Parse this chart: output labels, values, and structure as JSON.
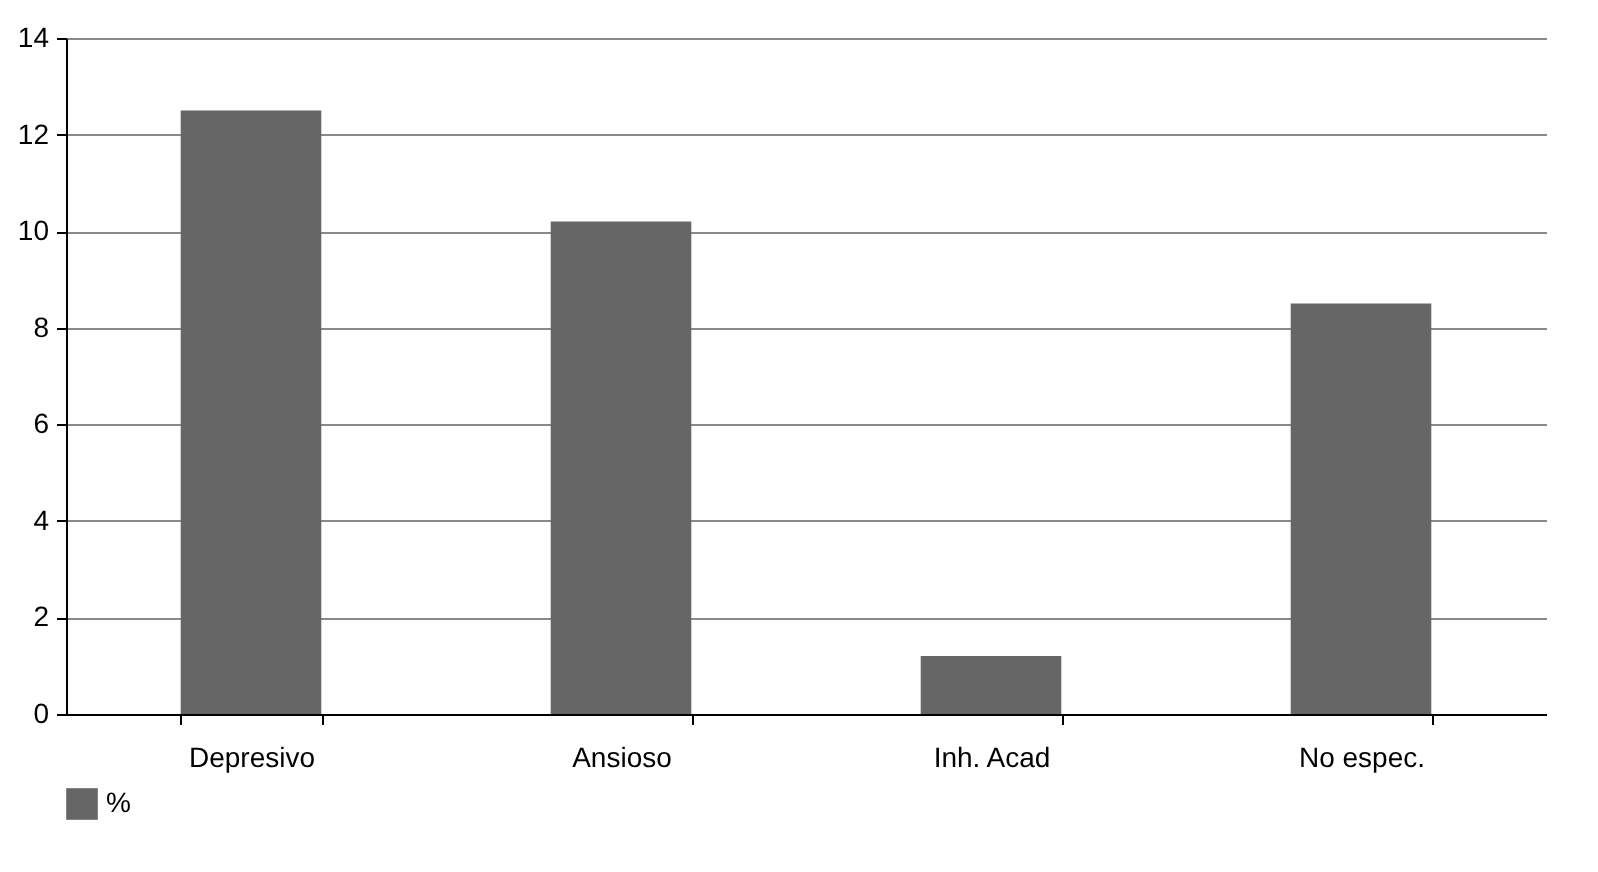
{
  "chart_data": {
    "type": "bar",
    "categories": [
      "Depresivo",
      "Ansioso",
      "Inh. Acad",
      "No espec."
    ],
    "series": [
      {
        "name": "%",
        "color": "#666666",
        "values": [
          12.5,
          10.2,
          1.2,
          8.5
        ]
      }
    ],
    "ylim": [
      0,
      14
    ],
    "yticks": [
      0,
      2,
      4,
      6,
      8,
      10,
      12,
      14
    ],
    "grid": "y",
    "legend": "bottom"
  }
}
